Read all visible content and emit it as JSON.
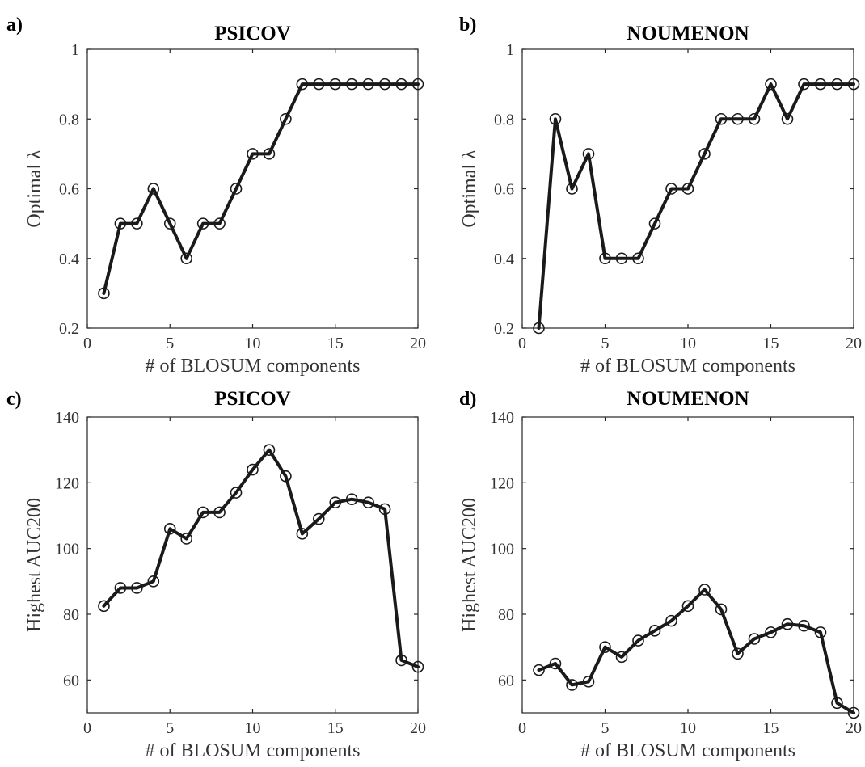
{
  "chart_data": [
    {
      "panel": "a)",
      "type": "line",
      "title": "PSICOV",
      "xlabel": "# of BLOSUM components",
      "ylabel": "Optimal λ",
      "xlim": [
        0,
        20
      ],
      "ylim": [
        0.2,
        1
      ],
      "xticks": [
        0,
        5,
        10,
        15,
        20
      ],
      "yticks": [
        0.2,
        0.4,
        0.6,
        0.8,
        1
      ],
      "ytick_labels": [
        "0.2",
        "0.4",
        "0.6",
        "0.8",
        "1"
      ],
      "x": [
        1,
        2,
        3,
        4,
        5,
        6,
        7,
        8,
        9,
        10,
        11,
        12,
        13,
        14,
        15,
        16,
        17,
        18,
        19,
        20
      ],
      "values": [
        0.3,
        0.5,
        0.5,
        0.6,
        0.5,
        0.4,
        0.5,
        0.5,
        0.6,
        0.7,
        0.7,
        0.8,
        0.9,
        0.9,
        0.9,
        0.9,
        0.9,
        0.9,
        0.9,
        0.9
      ],
      "grid": false,
      "color": "#1a1a1a"
    },
    {
      "panel": "b)",
      "type": "line",
      "title": "NOUMENON",
      "xlabel": "# of BLOSUM components",
      "ylabel": "Optimal λ",
      "xlim": [
        0,
        20
      ],
      "ylim": [
        0.2,
        1
      ],
      "xticks": [
        0,
        5,
        10,
        15,
        20
      ],
      "yticks": [
        0.2,
        0.4,
        0.6,
        0.8,
        1
      ],
      "ytick_labels": [
        "0.2",
        "0.4",
        "0.6",
        "0.8",
        "1"
      ],
      "x": [
        1,
        2,
        3,
        4,
        5,
        6,
        7,
        8,
        9,
        10,
        11,
        12,
        13,
        14,
        15,
        16,
        17,
        18,
        19,
        20
      ],
      "values": [
        0.2,
        0.8,
        0.6,
        0.7,
        0.4,
        0.4,
        0.4,
        0.5,
        0.6,
        0.6,
        0.7,
        0.8,
        0.8,
        0.8,
        0.9,
        0.8,
        0.9,
        0.9,
        0.9,
        0.9
      ],
      "grid": false,
      "color": "#1a1a1a"
    },
    {
      "panel": "c)",
      "type": "line",
      "title": "PSICOV",
      "xlabel": "# of BLOSUM components",
      "ylabel": "Highest AUC200",
      "xlim": [
        0,
        20
      ],
      "ylim": [
        50,
        140
      ],
      "xticks": [
        0,
        5,
        10,
        15,
        20
      ],
      "yticks": [
        60,
        80,
        100,
        120,
        140
      ],
      "ytick_labels": [
        "60",
        "80",
        "100",
        "120",
        "140"
      ],
      "x": [
        1,
        2,
        3,
        4,
        5,
        6,
        7,
        8,
        9,
        10,
        11,
        12,
        13,
        14,
        15,
        16,
        17,
        18,
        19,
        20
      ],
      "values": [
        82.5,
        88,
        88,
        90,
        106,
        103,
        111,
        111,
        117,
        124,
        130,
        122,
        104.5,
        109,
        114,
        115,
        114,
        112,
        66,
        64
      ],
      "grid": false,
      "color": "#1a1a1a"
    },
    {
      "panel": "d)",
      "type": "line",
      "title": "NOUMENON",
      "xlabel": "# of BLOSUM components",
      "ylabel": "Highest AUC200",
      "xlim": [
        0,
        20
      ],
      "ylim": [
        50,
        140
      ],
      "xticks": [
        0,
        5,
        10,
        15,
        20
      ],
      "yticks": [
        60,
        80,
        100,
        120,
        140
      ],
      "ytick_labels": [
        "60",
        "80",
        "100",
        "120",
        "140"
      ],
      "x": [
        1,
        2,
        3,
        4,
        5,
        6,
        7,
        8,
        9,
        10,
        11,
        12,
        13,
        14,
        15,
        16,
        17,
        18,
        19,
        20
      ],
      "values": [
        63,
        65,
        58.5,
        59.5,
        70,
        67,
        72,
        75,
        78,
        82.5,
        87.5,
        81.5,
        68,
        72.5,
        74.5,
        77,
        76.5,
        74.5,
        53,
        50
      ],
      "grid": false,
      "color": "#1a1a1a"
    }
  ]
}
